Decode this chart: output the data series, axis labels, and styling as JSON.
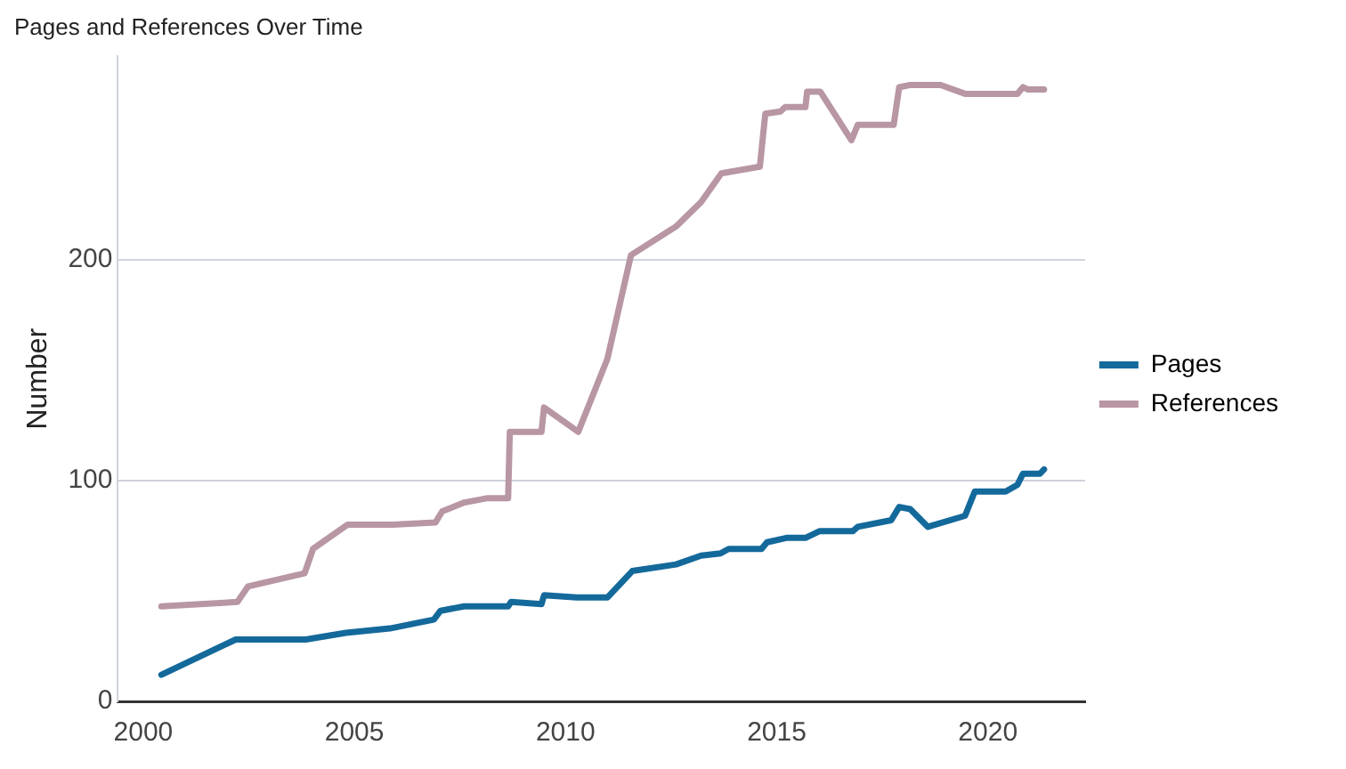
{
  "chart_data": {
    "type": "line",
    "title": "Pages and References Over Time",
    "ylabel": "Number",
    "xlim": [
      1999.4,
      2022.3
    ],
    "xticks": [
      2000,
      2005,
      2010,
      2015,
      2020
    ],
    "ylim": [
      0,
      292
    ],
    "yticks": [
      0,
      100,
      200
    ],
    "grid": "y",
    "legend": "right",
    "marker": "none",
    "line_style": "solid",
    "series": [
      {
        "name": "Pages",
        "color": "#14699b",
        "x": [
          2000.43,
          2002.19,
          2003.85,
          2004.8,
          2005.84,
          2006.88,
          2007.04,
          2007.6,
          2008.64,
          2008.71,
          2009.43,
          2009.49,
          2010.27,
          2010.99,
          2011.58,
          2012.62,
          2013.21,
          2013.67,
          2013.86,
          2014.64,
          2014.77,
          2015.23,
          2015.68,
          2016.01,
          2016.8,
          2016.92,
          2017.71,
          2017.9,
          2018.16,
          2018.58,
          2019.46,
          2019.69,
          2020.42,
          2020.7,
          2020.83,
          2021.23,
          2021.33
        ],
        "values": [
          12,
          28,
          28,
          31,
          33,
          37,
          41,
          43,
          43,
          45,
          44,
          48,
          47,
          47,
          59,
          62,
          66,
          67,
          69,
          69,
          72,
          74,
          74,
          77,
          77,
          79,
          82,
          88,
          87,
          79,
          84,
          95,
          95,
          98,
          103,
          103,
          105
        ]
      },
      {
        "name": "References",
        "color": "#b896a4",
        "x": [
          2000.43,
          2002.23,
          2002.48,
          2003.82,
          2004.02,
          2004.84,
          2005.91,
          2006.92,
          2007.08,
          2007.6,
          2008.16,
          2008.64,
          2008.68,
          2009.43,
          2009.49,
          2010.3,
          2010.99,
          2011.55,
          2012.62,
          2013.21,
          2013.69,
          2014.6,
          2014.73,
          2015.09,
          2015.2,
          2015.68,
          2015.72,
          2016.03,
          2016.77,
          2016.92,
          2017.77,
          2017.9,
          2018.16,
          2018.88,
          2019.46,
          2020.7,
          2020.83,
          2020.94,
          2021.33
        ],
        "values": [
          43,
          45,
          52,
          58,
          69,
          80,
          80,
          81,
          86,
          90,
          92,
          92,
          122,
          122,
          133,
          122,
          155,
          202,
          215,
          226,
          239,
          242,
          266,
          267,
          269,
          269,
          276,
          276,
          254,
          261,
          261,
          278,
          279,
          279,
          275,
          275,
          278,
          277,
          277
        ]
      }
    ]
  }
}
